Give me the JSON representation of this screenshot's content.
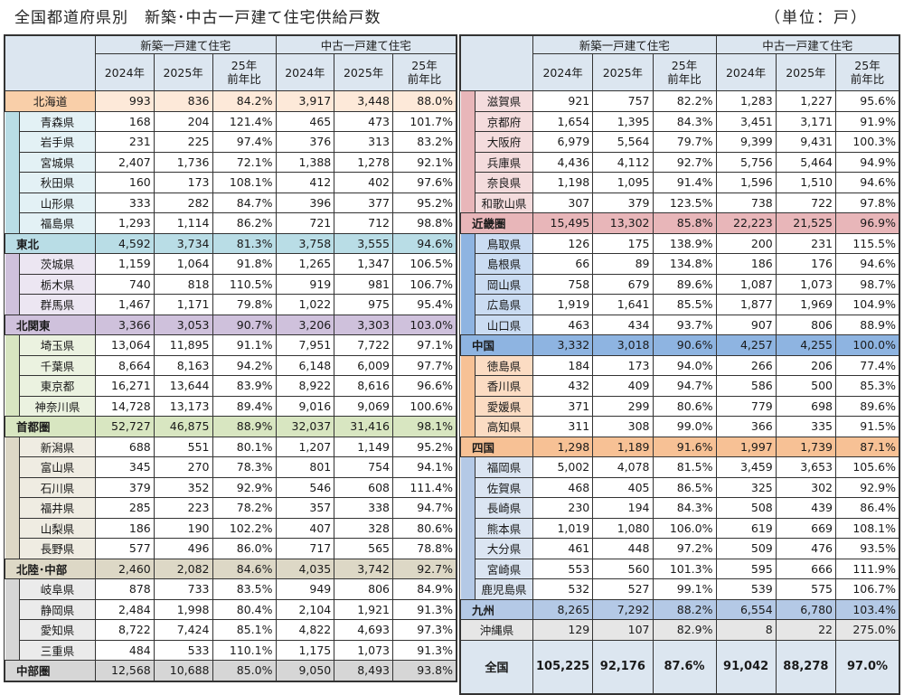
{
  "header": {
    "title": "全国都道府県別　新築･中古一戸建て住宅供給戸数",
    "unit": "（単位：戸）"
  },
  "columns": {
    "group_new": "新築一戸建て住宅",
    "group_used": "中古一戸建て住宅",
    "y2024": "2024年",
    "y2025": "2025年",
    "ratio_line1": "25年",
    "ratio_line2": "前年比"
  },
  "colors": {
    "header_bg": "#dce6f0",
    "hokkaido": "#f9cfa9",
    "tohoku": "#b9dde6",
    "kitakanto": "#cfc1dc",
    "shutoken": "#d8e6c1",
    "hokuriku_chubu": "#ddd8c6",
    "chubuken": "#d6d6d6",
    "kinki": "#e8b6b9",
    "chugoku": "#8eb4e1",
    "shikoku": "#f7c195",
    "kyushu": "#b4c9e6",
    "okinawa": "#e6e6e6",
    "total": "#dce6f0"
  },
  "left_table": {
    "hokkaido": {
      "name": "北海道",
      "values": [
        "993",
        "836",
        "84.2%",
        "3,917",
        "3,448",
        "88.0%"
      ]
    },
    "tohoku": {
      "prefs": [
        {
          "name": "青森県",
          "values": [
            "168",
            "204",
            "121.4%",
            "465",
            "473",
            "101.7%"
          ]
        },
        {
          "name": "岩手県",
          "values": [
            "231",
            "225",
            "97.4%",
            "376",
            "313",
            "83.2%"
          ]
        },
        {
          "name": "宮城県",
          "values": [
            "2,407",
            "1,736",
            "72.1%",
            "1,388",
            "1,278",
            "92.1%"
          ]
        },
        {
          "name": "秋田県",
          "values": [
            "160",
            "173",
            "108.1%",
            "412",
            "402",
            "97.6%"
          ]
        },
        {
          "name": "山形県",
          "values": [
            "333",
            "282",
            "84.7%",
            "396",
            "377",
            "95.2%"
          ]
        },
        {
          "name": "福島県",
          "values": [
            "1,293",
            "1,114",
            "86.2%",
            "721",
            "712",
            "98.8%"
          ]
        }
      ],
      "subtotal": {
        "name": "東北",
        "values": [
          "4,592",
          "3,734",
          "81.3%",
          "3,758",
          "3,555",
          "94.6%"
        ]
      }
    },
    "kitakanto": {
      "prefs": [
        {
          "name": "茨城県",
          "values": [
            "1,159",
            "1,064",
            "91.8%",
            "1,265",
            "1,347",
            "106.5%"
          ]
        },
        {
          "name": "栃木県",
          "values": [
            "740",
            "818",
            "110.5%",
            "919",
            "981",
            "106.7%"
          ]
        },
        {
          "name": "群馬県",
          "values": [
            "1,467",
            "1,171",
            "79.8%",
            "1,022",
            "975",
            "95.4%"
          ]
        }
      ],
      "subtotal": {
        "name": "北関東",
        "values": [
          "3,366",
          "3,053",
          "90.7%",
          "3,206",
          "3,303",
          "103.0%"
        ]
      }
    },
    "shutoken": {
      "prefs": [
        {
          "name": "埼玉県",
          "values": [
            "13,064",
            "11,895",
            "91.1%",
            "7,951",
            "7,722",
            "97.1%"
          ]
        },
        {
          "name": "千葉県",
          "values": [
            "8,664",
            "8,163",
            "94.2%",
            "6,148",
            "6,009",
            "97.7%"
          ]
        },
        {
          "name": "東京都",
          "values": [
            "16,271",
            "13,644",
            "83.9%",
            "8,922",
            "8,616",
            "96.6%"
          ]
        },
        {
          "name": "神奈川県",
          "values": [
            "14,728",
            "13,173",
            "89.4%",
            "9,016",
            "9,069",
            "100.6%"
          ]
        }
      ],
      "subtotal": {
        "name": "首都圏",
        "values": [
          "52,727",
          "46,875",
          "88.9%",
          "32,037",
          "31,416",
          "98.1%"
        ]
      }
    },
    "hokuriku_chubu": {
      "prefs": [
        {
          "name": "新潟県",
          "values": [
            "688",
            "551",
            "80.1%",
            "1,207",
            "1,149",
            "95.2%"
          ]
        },
        {
          "name": "富山県",
          "values": [
            "345",
            "270",
            "78.3%",
            "801",
            "754",
            "94.1%"
          ]
        },
        {
          "name": "石川県",
          "values": [
            "379",
            "352",
            "92.9%",
            "546",
            "608",
            "111.4%"
          ]
        },
        {
          "name": "福井県",
          "values": [
            "285",
            "223",
            "78.2%",
            "357",
            "338",
            "94.7%"
          ]
        },
        {
          "name": "山梨県",
          "values": [
            "186",
            "190",
            "102.2%",
            "407",
            "328",
            "80.6%"
          ]
        },
        {
          "name": "長野県",
          "values": [
            "577",
            "496",
            "86.0%",
            "717",
            "565",
            "78.8%"
          ]
        }
      ],
      "subtotal": {
        "name": "北陸･中部",
        "values": [
          "2,460",
          "2,082",
          "84.6%",
          "4,035",
          "3,742",
          "92.7%"
        ]
      }
    },
    "chubuken": {
      "prefs": [
        {
          "name": "岐阜県",
          "values": [
            "878",
            "733",
            "83.5%",
            "949",
            "806",
            "84.9%"
          ]
        },
        {
          "name": "静岡県",
          "values": [
            "2,484",
            "1,998",
            "80.4%",
            "2,104",
            "1,921",
            "91.3%"
          ]
        },
        {
          "name": "愛知県",
          "values": [
            "8,722",
            "7,424",
            "85.1%",
            "4,822",
            "4,693",
            "97.3%"
          ]
        },
        {
          "name": "三重県",
          "values": [
            "484",
            "533",
            "110.1%",
            "1,175",
            "1,073",
            "91.3%"
          ]
        }
      ],
      "subtotal": {
        "name": "中部圏",
        "values": [
          "12,568",
          "10,688",
          "85.0%",
          "9,050",
          "8,493",
          "93.8%"
        ]
      }
    }
  },
  "right_table": {
    "kinki": {
      "prefs": [
        {
          "name": "滋賀県",
          "values": [
            "921",
            "757",
            "82.2%",
            "1,283",
            "1,227",
            "95.6%"
          ]
        },
        {
          "name": "京都府",
          "values": [
            "1,654",
            "1,395",
            "84.3%",
            "3,451",
            "3,171",
            "91.9%"
          ]
        },
        {
          "name": "大阪府",
          "values": [
            "6,979",
            "5,564",
            "79.7%",
            "9,399",
            "9,431",
            "100.3%"
          ]
        },
        {
          "name": "兵庫県",
          "values": [
            "4,436",
            "4,112",
            "92.7%",
            "5,756",
            "5,464",
            "94.9%"
          ]
        },
        {
          "name": "奈良県",
          "values": [
            "1,198",
            "1,095",
            "91.4%",
            "1,596",
            "1,510",
            "94.6%"
          ]
        },
        {
          "name": "和歌山県",
          "values": [
            "307",
            "379",
            "123.5%",
            "738",
            "722",
            "97.8%"
          ]
        }
      ],
      "subtotal": {
        "name": "近畿圏",
        "values": [
          "15,495",
          "13,302",
          "85.8%",
          "22,223",
          "21,525",
          "96.9%"
        ]
      }
    },
    "chugoku": {
      "prefs": [
        {
          "name": "鳥取県",
          "values": [
            "126",
            "175",
            "138.9%",
            "200",
            "231",
            "115.5%"
          ]
        },
        {
          "name": "島根県",
          "values": [
            "66",
            "89",
            "134.8%",
            "186",
            "176",
            "94.6%"
          ]
        },
        {
          "name": "岡山県",
          "values": [
            "758",
            "679",
            "89.6%",
            "1,087",
            "1,073",
            "98.7%"
          ]
        },
        {
          "name": "広島県",
          "values": [
            "1,919",
            "1,641",
            "85.5%",
            "1,877",
            "1,969",
            "104.9%"
          ]
        },
        {
          "name": "山口県",
          "values": [
            "463",
            "434",
            "93.7%",
            "907",
            "806",
            "88.9%"
          ]
        }
      ],
      "subtotal": {
        "name": "中国",
        "values": [
          "3,332",
          "3,018",
          "90.6%",
          "4,257",
          "4,255",
          "100.0%"
        ]
      }
    },
    "shikoku": {
      "prefs": [
        {
          "name": "徳島県",
          "values": [
            "184",
            "173",
            "94.0%",
            "266",
            "206",
            "77.4%"
          ]
        },
        {
          "name": "香川県",
          "values": [
            "432",
            "409",
            "94.7%",
            "586",
            "500",
            "85.3%"
          ]
        },
        {
          "name": "愛媛県",
          "values": [
            "371",
            "299",
            "80.6%",
            "779",
            "698",
            "89.6%"
          ]
        },
        {
          "name": "高知県",
          "values": [
            "311",
            "308",
            "99.0%",
            "366",
            "335",
            "91.5%"
          ]
        }
      ],
      "subtotal": {
        "name": "四国",
        "values": [
          "1,298",
          "1,189",
          "91.6%",
          "1,997",
          "1,739",
          "87.1%"
        ]
      }
    },
    "kyushu": {
      "prefs": [
        {
          "name": "福岡県",
          "values": [
            "5,002",
            "4,078",
            "81.5%",
            "3,459",
            "3,653",
            "105.6%"
          ]
        },
        {
          "name": "佐賀県",
          "values": [
            "468",
            "405",
            "86.5%",
            "325",
            "302",
            "92.9%"
          ]
        },
        {
          "name": "長崎県",
          "values": [
            "230",
            "194",
            "84.3%",
            "508",
            "439",
            "86.4%"
          ]
        },
        {
          "name": "熊本県",
          "values": [
            "1,019",
            "1,080",
            "106.0%",
            "619",
            "669",
            "108.1%"
          ]
        },
        {
          "name": "大分県",
          "values": [
            "461",
            "448",
            "97.2%",
            "509",
            "476",
            "93.5%"
          ]
        },
        {
          "name": "宮崎県",
          "values": [
            "553",
            "560",
            "101.3%",
            "595",
            "666",
            "111.9%"
          ]
        },
        {
          "name": "鹿児島県",
          "values": [
            "532",
            "527",
            "99.1%",
            "539",
            "575",
            "106.7%"
          ]
        }
      ],
      "subtotal": {
        "name": "九州",
        "values": [
          "8,265",
          "7,292",
          "88.2%",
          "6,554",
          "6,780",
          "103.4%"
        ]
      }
    },
    "okinawa": {
      "name": "沖縄県",
      "values": [
        "129",
        "107",
        "82.9%",
        "8",
        "22",
        "275.0%"
      ]
    },
    "total": {
      "name": "全国",
      "values": [
        "105,225",
        "92,176",
        "87.6%",
        "91,042",
        "88,278",
        "97.0%"
      ]
    }
  }
}
